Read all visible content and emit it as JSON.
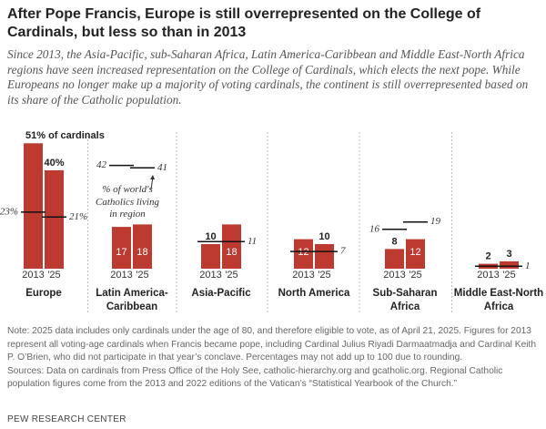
{
  "chart_data": {
    "type": "bar",
    "title": "After Pope Francis, Europe is still overrepresented on the College of Cardinals, but less so than in 2013",
    "subtitle": "Since 2013, the Asia-Pacific, sub-Saharan Africa, Latin America-Caribbean and Middle East-North Africa regions have seen increased representation on the College of Cardinals, which elects the next pope. While Europeans no longer make up a majority of voting cardinals, the continent is still overrepresented based on its share of the Catholic population.",
    "annotation": "% of world's Catholics living in region",
    "categories": [
      "2013",
      "'25"
    ],
    "color": "#bd3a30",
    "share_color": "#111111",
    "panels": [
      {
        "name": "Europe",
        "values": [
          51,
          40
        ],
        "value_labels": [
          "51% of cardinals",
          "40%"
        ],
        "share": [
          23,
          21
        ],
        "share_labels": [
          "23%",
          "21%"
        ]
      },
      {
        "name": "Latin America-Caribbean",
        "values": [
          17,
          18
        ],
        "share": [
          42,
          41
        ]
      },
      {
        "name": "Asia-Pacific",
        "values": [
          10,
          18
        ],
        "share": [
          11
        ]
      },
      {
        "name": "North America",
        "values": [
          12,
          10
        ],
        "share": [
          7
        ]
      },
      {
        "name": "Sub-Saharan Africa",
        "values": [
          8,
          12
        ],
        "share": [
          16,
          19
        ]
      },
      {
        "name": "Middle East-North Africa",
        "values": [
          2,
          3
        ],
        "share": [
          1
        ]
      }
    ],
    "notes": [
      "Note: 2025 data includes only cardinals under the age of 80, and therefore eligible to vote, as of April 21, 2025. Figures for 2013 represent all voting-age cardinals when Francis became pope, including Cardinal Julius Riyadi Darmaatmadja and Cardinal Keith P. O’Brien, who did not participate in that year’s conclave. Percentages may not add up to 100 due to rounding.",
      "Sources: Data on cardinals from Press Office of the Holy See, catholic-hierarchy.org and gcatholic.org. Regional Catholic population figures come from the 2013 and 2022 editions of the Vatican’s “Statistical Yearbook of the Church.”"
    ],
    "source_org": "PEW RESEARCH CENTER"
  }
}
